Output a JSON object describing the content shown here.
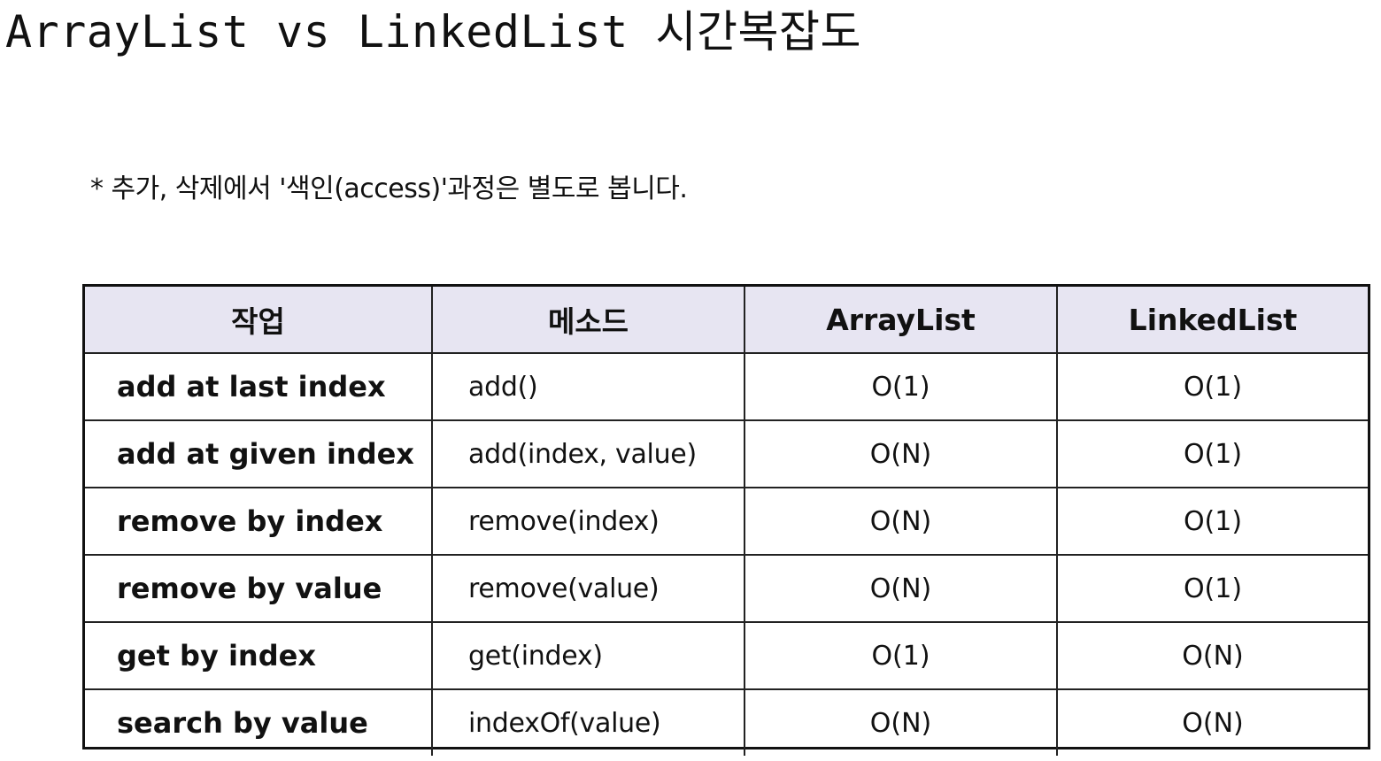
{
  "title": "ArrayList vs LinkedList 시간복잡도",
  "note": "* 추가, 삭제에서 '색인(access)'과정은 별도로 봅니다.",
  "table": {
    "headers": [
      "작업",
      "메소드",
      "ArrayList",
      "LinkedList"
    ],
    "rows": [
      {
        "operation": "add at last index",
        "method": "add()",
        "arraylist": "O(1)",
        "linkedlist": "O(1)"
      },
      {
        "operation": "add at given index",
        "method": "add(index, value)",
        "arraylist": "O(N)",
        "linkedlist": "O(1)"
      },
      {
        "operation": "remove by index",
        "method": "remove(index)",
        "arraylist": "O(N)",
        "linkedlist": "O(1)"
      },
      {
        "operation": "remove by value",
        "method": "remove(value)",
        "arraylist": "O(N)",
        "linkedlist": "O(1)"
      },
      {
        "operation": "get by index",
        "method": "get(index)",
        "arraylist": "O(1)",
        "linkedlist": "O(N)"
      },
      {
        "operation": "search by value",
        "method": "indexOf(value)",
        "arraylist": "O(N)",
        "linkedlist": "O(N)"
      }
    ]
  },
  "colors": {
    "header_background": "#e7e5f2",
    "border": "#111111",
    "text": "#111111"
  }
}
